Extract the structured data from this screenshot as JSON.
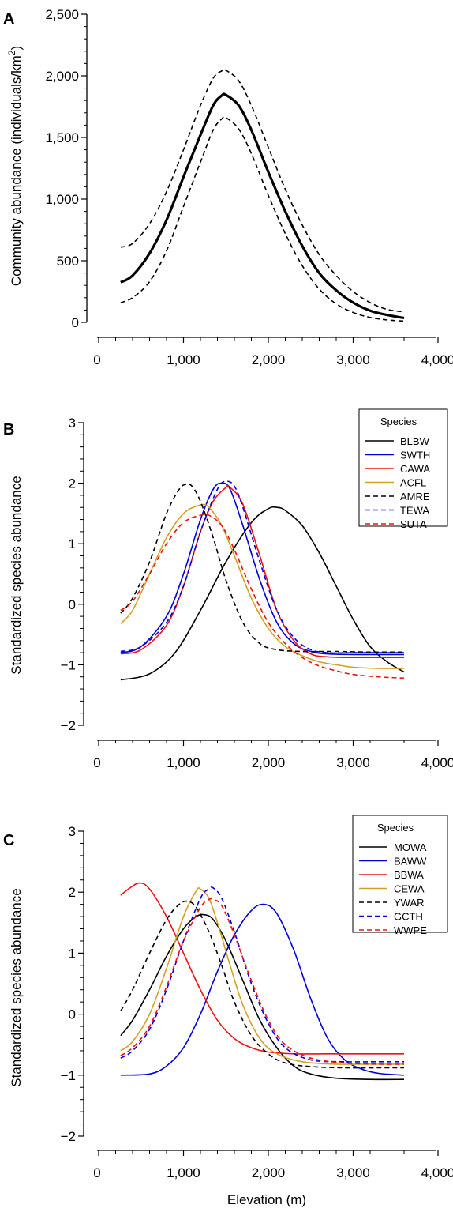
{
  "chart_data": [
    {
      "panel": "A",
      "type": "line",
      "xlabel": "",
      "ylabel": "Community abundance (individuals/km²)",
      "xlim": [
        0,
        4000
      ],
      "ylim": [
        0,
        2500
      ],
      "xticks": [
        "0",
        "1,000",
        "2,000",
        "3,000",
        "4,000"
      ],
      "yticks": [
        "0",
        "500",
        "1,000",
        "1,500",
        "2,000",
        "2,500"
      ],
      "x": [
        260,
        400,
        600,
        800,
        1000,
        1200,
        1350,
        1450,
        1500,
        1650,
        1800,
        2000,
        2200,
        2400,
        2600,
        2800,
        3000,
        3200,
        3400,
        3600
      ],
      "series": [
        {
          "style": "solid-thick",
          "color": "#000000",
          "values": [
            325,
            380,
            560,
            830,
            1180,
            1520,
            1760,
            1840,
            1845,
            1760,
            1560,
            1220,
            900,
            620,
            400,
            260,
            160,
            95,
            60,
            35
          ]
        },
        {
          "style": "dashed",
          "color": "#000000",
          "values": [
            610,
            640,
            800,
            1060,
            1400,
            1760,
            1980,
            2040,
            2045,
            1960,
            1760,
            1420,
            1080,
            790,
            550,
            380,
            250,
            160,
            105,
            85
          ]
        },
        {
          "style": "dashed",
          "color": "#000000",
          "values": [
            160,
            200,
            330,
            580,
            940,
            1300,
            1560,
            1650,
            1660,
            1570,
            1370,
            1030,
            720,
            460,
            270,
            150,
            80,
            40,
            20,
            10
          ]
        }
      ]
    },
    {
      "panel": "B",
      "type": "line",
      "xlabel": "",
      "ylabel": "Standardized species abundance",
      "xlim": [
        0,
        4000
      ],
      "ylim": [
        -2,
        3
      ],
      "xticks": [
        "0",
        "1,000",
        "2,000",
        "3,000",
        "4,000"
      ],
      "yticks": [
        "−2",
        "−1",
        "0",
        "1",
        "2",
        "3"
      ],
      "legend_title": "Species",
      "legend_position": "top-right",
      "series": [
        {
          "name": "BLBW",
          "color": "#000000",
          "dash": false,
          "x": [
            260,
            600,
            900,
            1200,
            1500,
            1800,
            2000,
            2100,
            2200,
            2400,
            2600,
            2800,
            3000,
            3200,
            3400,
            3600
          ],
          "values": [
            -1.25,
            -1.15,
            -0.8,
            -0.1,
            0.7,
            1.35,
            1.58,
            1.6,
            1.55,
            1.3,
            0.85,
            0.3,
            -0.25,
            -0.7,
            -0.95,
            -1.12
          ]
        },
        {
          "name": "SWTH",
          "color": "#0000dd",
          "dash": false,
          "x": [
            260,
            500,
            800,
            1000,
            1200,
            1350,
            1450,
            1550,
            1700,
            1900,
            2100,
            2300,
            2500,
            2700,
            3000,
            3300,
            3600
          ],
          "values": [
            -0.8,
            -0.7,
            -0.2,
            0.5,
            1.4,
            1.9,
            2.0,
            1.9,
            1.3,
            0.4,
            -0.3,
            -0.65,
            -0.78,
            -0.82,
            -0.83,
            -0.83,
            -0.83
          ]
        },
        {
          "name": "CAWA",
          "color": "#ee1111",
          "dash": false,
          "x": [
            260,
            500,
            800,
            1000,
            1200,
            1350,
            1500,
            1550,
            1700,
            1900,
            2100,
            2300,
            2500,
            2700,
            3000,
            3300,
            3600
          ],
          "values": [
            -0.82,
            -0.75,
            -0.35,
            0.3,
            1.2,
            1.7,
            1.93,
            1.93,
            1.65,
            0.8,
            -0.1,
            -0.6,
            -0.82,
            -0.87,
            -0.88,
            -0.88,
            -0.88
          ]
        },
        {
          "name": "ACFL",
          "color": "#d4a020",
          "dash": false,
          "x": [
            260,
            400,
            600,
            800,
            1000,
            1200,
            1300,
            1450,
            1600,
            1800,
            2000,
            2200,
            2400,
            2600,
            2800,
            3000,
            3300,
            3600
          ],
          "values": [
            -0.32,
            -0.1,
            0.5,
            1.1,
            1.5,
            1.64,
            1.6,
            1.3,
            0.8,
            0.1,
            -0.4,
            -0.7,
            -0.85,
            -0.95,
            -1.0,
            -1.04,
            -1.06,
            -1.06
          ]
        },
        {
          "name": "AMRE",
          "color": "#000000",
          "dash": true,
          "x": [
            260,
            400,
            600,
            800,
            950,
            1030,
            1100,
            1200,
            1350,
            1500,
            1700,
            1900,
            2100,
            2400,
            2800,
            3200,
            3600
          ],
          "values": [
            -0.15,
            0.1,
            0.7,
            1.5,
            1.9,
            1.98,
            1.95,
            1.7,
            1.1,
            0.4,
            -0.3,
            -0.65,
            -0.75,
            -0.78,
            -0.78,
            -0.79,
            -0.79
          ]
        },
        {
          "name": "TEWA",
          "color": "#0000dd",
          "dash": true,
          "x": [
            260,
            500,
            800,
            1000,
            1200,
            1400,
            1500,
            1600,
            1700,
            1900,
            2100,
            2300,
            2500,
            2700,
            3000,
            3300,
            3600
          ],
          "values": [
            -0.78,
            -0.7,
            -0.3,
            0.3,
            1.2,
            1.9,
            2.03,
            1.95,
            1.6,
            0.7,
            -0.1,
            -0.55,
            -0.75,
            -0.8,
            -0.8,
            -0.8,
            -0.8
          ]
        },
        {
          "name": "SUTA",
          "color": "#ee1111",
          "dash": true,
          "x": [
            260,
            400,
            600,
            800,
            1000,
            1200,
            1300,
            1450,
            1600,
            1800,
            2000,
            2200,
            2400,
            2600,
            2800,
            3000,
            3300,
            3600
          ],
          "values": [
            -0.1,
            0.05,
            0.5,
            1.0,
            1.35,
            1.47,
            1.47,
            1.3,
            0.9,
            0.25,
            -0.3,
            -0.65,
            -0.88,
            -1.02,
            -1.1,
            -1.16,
            -1.2,
            -1.22
          ]
        }
      ]
    },
    {
      "panel": "C",
      "type": "line",
      "xlabel": "Elevation (m)",
      "ylabel": "Standardized species abundance",
      "xlim": [
        0,
        4000
      ],
      "ylim": [
        -2,
        3
      ],
      "xticks": [
        "0",
        "1,000",
        "2,000",
        "3,000",
        "4,000"
      ],
      "yticks": [
        "−2",
        "−1",
        "0",
        "1",
        "2",
        "3"
      ],
      "legend_title": "Species",
      "legend_position": "top-right",
      "series": [
        {
          "name": "MOWA",
          "color": "#000000",
          "dash": false,
          "x": [
            260,
            400,
            600,
            800,
            1000,
            1150,
            1250,
            1350,
            1500,
            1700,
            1900,
            2100,
            2300,
            2500,
            2800,
            3200,
            3600
          ],
          "values": [
            -0.35,
            -0.1,
            0.4,
            0.95,
            1.4,
            1.6,
            1.63,
            1.55,
            1.2,
            0.55,
            -0.1,
            -0.55,
            -0.85,
            -0.98,
            -1.05,
            -1.07,
            -1.07
          ]
        },
        {
          "name": "BAWW",
          "color": "#0000dd",
          "dash": false,
          "x": [
            260,
            600,
            800,
            1000,
            1200,
            1400,
            1600,
            1800,
            1950,
            2100,
            2300,
            2500,
            2700,
            2900,
            3100,
            3300,
            3600
          ],
          "values": [
            -1.0,
            -0.98,
            -0.85,
            -0.55,
            0.0,
            0.7,
            1.3,
            1.7,
            1.8,
            1.65,
            1.05,
            0.25,
            -0.4,
            -0.75,
            -0.9,
            -0.97,
            -1.0
          ]
        },
        {
          "name": "BBWA",
          "color": "#ee1111",
          "dash": false,
          "x": [
            260,
            350,
            480,
            600,
            800,
            1000,
            1200,
            1400,
            1600,
            1800,
            2000,
            2300,
            2700,
            3100,
            3600
          ],
          "values": [
            1.95,
            2.05,
            2.15,
            2.05,
            1.6,
            1.0,
            0.4,
            -0.1,
            -0.4,
            -0.55,
            -0.62,
            -0.65,
            -0.65,
            -0.65,
            -0.65
          ]
        },
        {
          "name": "CEWA",
          "color": "#d4a020",
          "dash": false,
          "x": [
            260,
            400,
            600,
            800,
            1000,
            1150,
            1200,
            1300,
            1400,
            1550,
            1700,
            1900,
            2100,
            2400,
            2800,
            3200,
            3600
          ],
          "values": [
            -0.6,
            -0.45,
            0.0,
            0.75,
            1.6,
            2.02,
            2.05,
            1.9,
            1.5,
            0.8,
            0.15,
            -0.4,
            -0.65,
            -0.78,
            -0.82,
            -0.82,
            -0.82
          ]
        },
        {
          "name": "YWAR",
          "color": "#000000",
          "dash": true,
          "x": [
            260,
            400,
            600,
            800,
            950,
            1050,
            1150,
            1300,
            1450,
            1600,
            1800,
            2000,
            2200,
            2500,
            2900,
            3300,
            3600
          ],
          "values": [
            0.05,
            0.4,
            1.0,
            1.55,
            1.8,
            1.85,
            1.75,
            1.35,
            0.8,
            0.2,
            -0.35,
            -0.65,
            -0.8,
            -0.86,
            -0.88,
            -0.88,
            -0.88
          ]
        },
        {
          "name": "GCTH",
          "color": "#0000dd",
          "dash": true,
          "x": [
            260,
            400,
            600,
            800,
            1000,
            1200,
            1300,
            1350,
            1450,
            1600,
            1800,
            2000,
            2200,
            2500,
            2900,
            3300,
            3600
          ],
          "values": [
            -0.72,
            -0.6,
            -0.25,
            0.4,
            1.2,
            1.9,
            2.05,
            2.07,
            1.9,
            1.35,
            0.5,
            -0.15,
            -0.55,
            -0.75,
            -0.78,
            -0.78,
            -0.78
          ]
        },
        {
          "name": "WWPE",
          "color": "#ee1111",
          "dash": true,
          "x": [
            260,
            400,
            600,
            800,
            1000,
            1200,
            1300,
            1350,
            1450,
            1600,
            1800,
            2000,
            2200,
            2500,
            2900,
            3300,
            3600
          ],
          "values": [
            -0.68,
            -0.55,
            -0.2,
            0.45,
            1.2,
            1.75,
            1.88,
            1.88,
            1.78,
            1.3,
            0.55,
            -0.1,
            -0.5,
            -0.72,
            -0.8,
            -0.82,
            -0.82
          ]
        }
      ]
    }
  ]
}
